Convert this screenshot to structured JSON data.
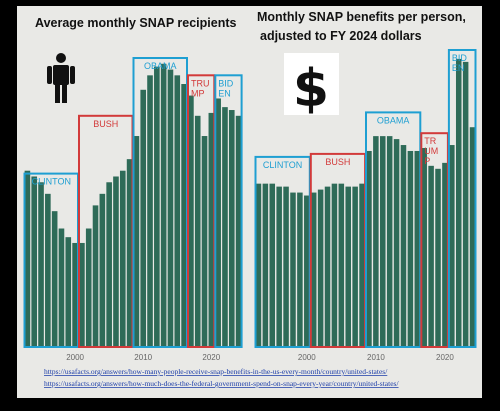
{
  "colors": {
    "bar": "#2e6b58",
    "panel": "#e9e9e6",
    "frame": "#000000",
    "dem": "#1e9fd2",
    "rep": "#d23a3a",
    "link": "#1a3ca8"
  },
  "icons": {
    "left": "person-icon",
    "right": "dollar-sign-icon"
  },
  "dollar_glyph": "$",
  "sources": [
    "https://usafacts.org/answers/how-many-people-receive-snap-benefits-in-the-us-every-month/country/united-states/",
    "https://usafacts.org/answers/how-much-does-the-federal-government-spend-on-snap-every-year/country/united-states/"
  ],
  "chart_data": [
    {
      "type": "bar",
      "title": "Average monthly SNAP recipients",
      "xlabel": "",
      "ylabel": "",
      "grid": false,
      "x_ticks": [
        "2000",
        "2010",
        "2020"
      ],
      "ylim": [
        0,
        100
      ],
      "categories": [
        1993,
        1994,
        1995,
        1996,
        1997,
        1998,
        1999,
        2000,
        2001,
        2002,
        2003,
        2004,
        2005,
        2006,
        2007,
        2008,
        2009,
        2010,
        2011,
        2012,
        2013,
        2014,
        2015,
        2016,
        2017,
        2018,
        2019,
        2020,
        2021,
        2022,
        2023,
        2024
      ],
      "values": [
        61,
        59,
        57,
        53,
        47,
        41,
        38,
        36,
        36,
        41,
        49,
        53,
        57,
        59,
        61,
        65,
        73,
        89,
        94,
        97,
        98,
        96,
        94,
        91,
        87,
        80,
        73,
        81,
        86,
        83,
        82,
        80
      ],
      "eras": [
        {
          "label": "CLINTON",
          "side": "dem",
          "start": 1993,
          "end": 2000,
          "top": 60
        },
        {
          "label": "BUSH",
          "side": "rep",
          "start": 2001,
          "end": 2008,
          "top": 80
        },
        {
          "label": "OBAMA",
          "side": "dem",
          "start": 2009,
          "end": 2016,
          "top": 100
        },
        {
          "label": "TRU MP",
          "side": "rep",
          "start": 2017,
          "end": 2020,
          "top": 94
        },
        {
          "label": "BID EN",
          "side": "dem",
          "start": 2021,
          "end": 2024,
          "top": 94
        }
      ]
    },
    {
      "type": "bar",
      "title": "Monthly SNAP benefits per person, adjusted to FY 2024 dollars",
      "xlabel": "",
      "ylabel": "",
      "grid": false,
      "x_ticks": [
        "2000",
        "2010",
        "2020"
      ],
      "ylim": [
        0,
        100
      ],
      "categories": [
        1993,
        1994,
        1995,
        1996,
        1997,
        1998,
        1999,
        2000,
        2001,
        2002,
        2003,
        2004,
        2005,
        2006,
        2007,
        2008,
        2009,
        2010,
        2011,
        2012,
        2013,
        2014,
        2015,
        2016,
        2017,
        2018,
        2019,
        2020,
        2021,
        2022,
        2023,
        2024
      ],
      "values": [
        55,
        55,
        55,
        54,
        54,
        52,
        52,
        51,
        52,
        53,
        54,
        55,
        55,
        54,
        54,
        55,
        66,
        71,
        71,
        71,
        70,
        68,
        66,
        66,
        67,
        61,
        60,
        62,
        68,
        97,
        96,
        74
      ],
      "eras": [
        {
          "label": "CLINTON",
          "side": "dem",
          "start": 1993,
          "end": 2000,
          "top": 64
        },
        {
          "label": "BUSH",
          "side": "rep",
          "start": 2001,
          "end": 2008,
          "top": 65
        },
        {
          "label": "OBAMA",
          "side": "dem",
          "start": 2009,
          "end": 2016,
          "top": 79
        },
        {
          "label": "TR UM P",
          "side": "rep",
          "start": 2017,
          "end": 2020,
          "top": 72
        },
        {
          "label": "BID EN",
          "side": "dem",
          "start": 2021,
          "end": 2024,
          "top": 100
        }
      ]
    }
  ]
}
